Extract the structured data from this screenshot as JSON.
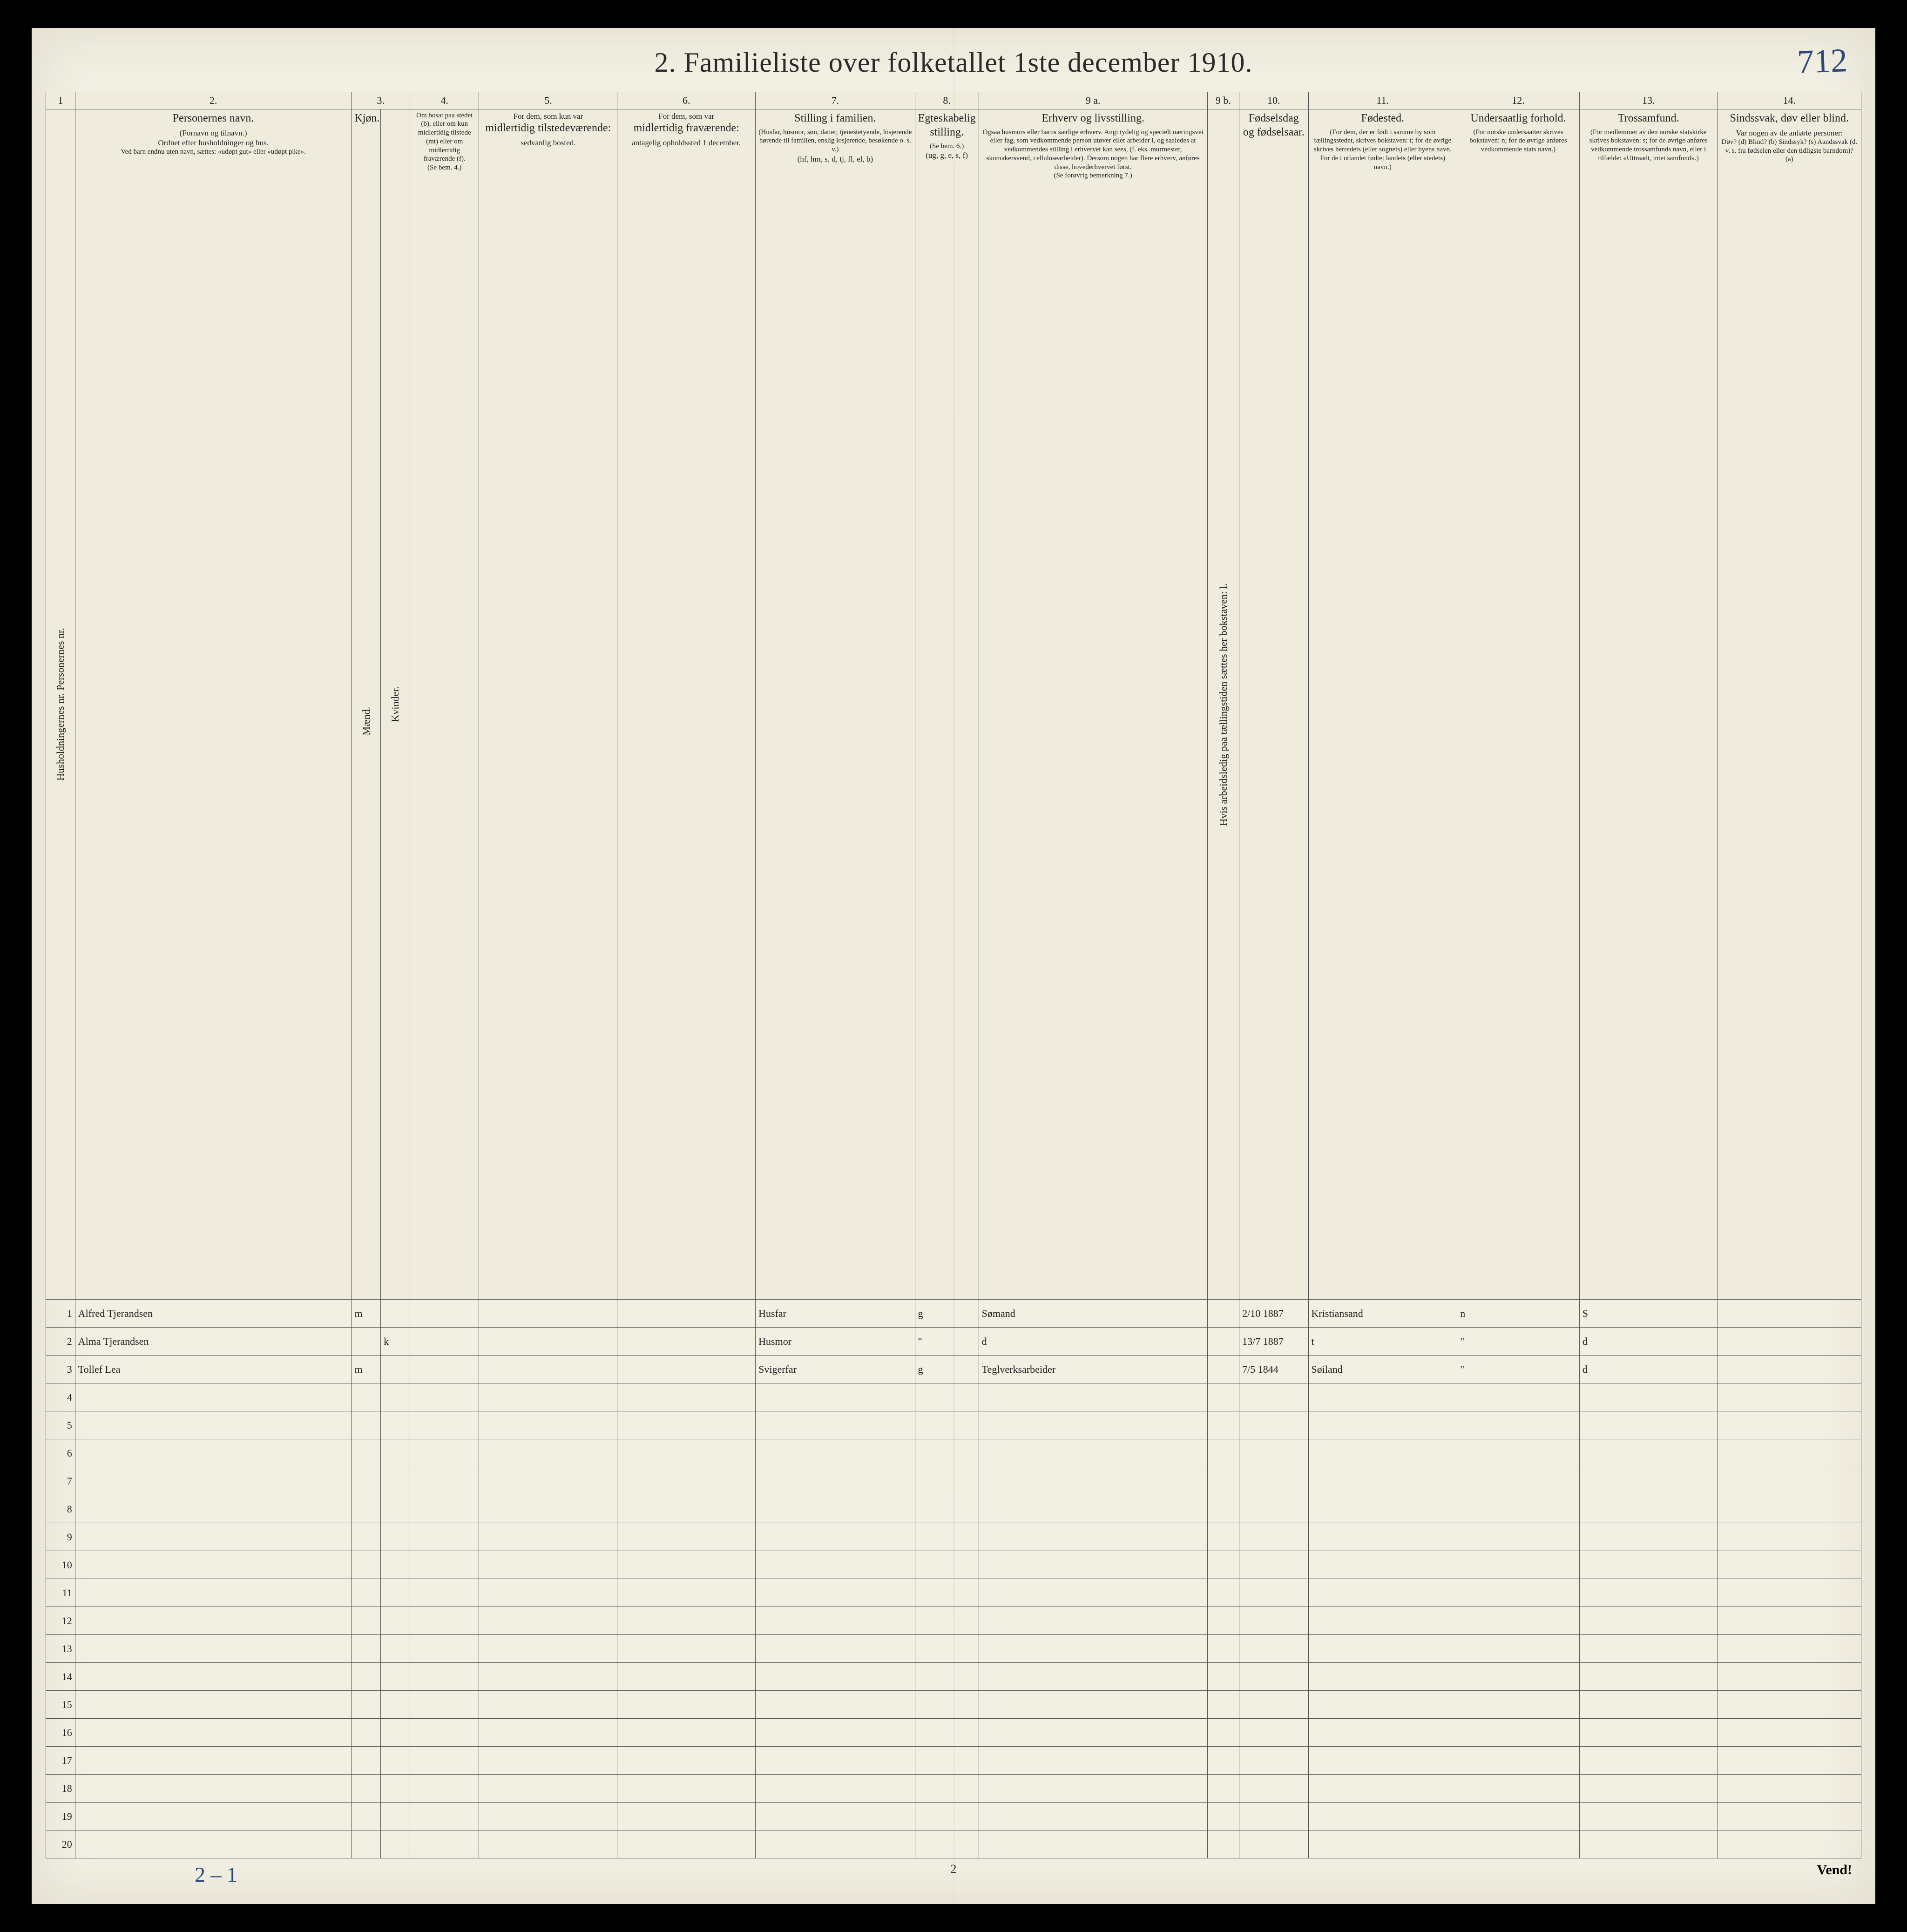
{
  "title": "2.   Familieliste over folketallet 1ste december 1910.",
  "top_right_handwritten": "712",
  "bottom_handwritten": "2 – 1",
  "bottom_page_number": "2",
  "vend": "Vend!",
  "colors": {
    "page_bg": "#f2efe3",
    "border": "#555555",
    "text": "#222222",
    "handwriting": "#303030",
    "handwriting_blue": "#2b4a7a"
  },
  "col_numbers": [
    "1",
    "2.",
    "3.",
    "4.",
    "5.",
    "6.",
    "7.",
    "8.",
    "9 a.",
    "9 b.",
    "10.",
    "11.",
    "12.",
    "13.",
    "14."
  ],
  "headers": {
    "c1": "Husholdningernes nr.   Personernes nr.",
    "c2_title": "Personernes navn.",
    "c2_sub1": "(Fornavn og tilnavn.)",
    "c2_sub2": "Ordnet efter husholdninger og hus.",
    "c2_sub3": "Ved barn endnu uten navn, sættes: «udøpt gut» eller «udøpt pike».",
    "c3_title": "Kjøn.",
    "c3_m": "Mænd.",
    "c3_k": "Kvinder.",
    "c3_bot": "m. | k.",
    "c4_top": "Om bosat paa stedet (b), eller om kun midlertidig tilstede (mt) eller om midlertidig fraværende (f).",
    "c4_bot": "(Se bem. 4.)",
    "c5_top": "For dem, som kun var",
    "c5_mid": "midlertidig tilstedeværende:",
    "c5_bot": "sedvanlig bosted.",
    "c6_top": "For dem, som var",
    "c6_mid": "midlertidig fraværende:",
    "c6_bot": "antagelig opholdssted 1 december.",
    "c7_top": "Stilling i familien.",
    "c7_mid": "(Husfar, husmor, søn, datter, tjenestetyende, losjerende hørende til familien, enslig losjerende, besøkende o. s. v.)",
    "c7_bot": "(hf, hm, s, d, tj, fl, el, b)",
    "c8_top": "Egteskabelig stilling.",
    "c8_mid": "(Se bem. 6.)",
    "c8_bot": "(ug, g, e, s, f)",
    "c9a_top": "Erhverv og livsstilling.",
    "c9a_mid": "Ogsaa husmors eller barns særlige erhverv. Angi tydelig og specielt næringsvei eller fag, som vedkommende person utøver eller arbeider i, og saaledes at vedkommendes stilling i erhvervet kan sees, (f. eks. murmester, skomakersvend, cellulosearbeider). Dersom nogen har flere erhverv, anføres disse, hovederhvervet først.",
    "c9a_bot": "(Se forøvrig bemerkning 7.)",
    "c9b": "Hvis arbeidsledig paa tællingstiden sættes her bokstaven: l.",
    "c10_top": "Fødselsdag og fødselsaar.",
    "c11_top": "Fødested.",
    "c11_mid": "(For dem, der er født i samme by som tællingsstedet, skrives bokstaven: t; for de øvrige skrives herredets (eller sognets) eller byens navn. For de i utlandet fødte: landets (eller stedets) navn.)",
    "c12_top": "Undersaatlig forhold.",
    "c12_mid": "(For norske undersaatter skrives bokstaven: n; for de øvrige anføres vedkommende stats navn.)",
    "c13_top": "Trossamfund.",
    "c13_mid": "(For medlemmer av den norske statskirke skrives bokstaven: s; for de øvrige anføres vedkommende trossamfunds navn, eller i tilfælde: «Uttraadt, intet samfund».)",
    "c14_top": "Sindssvak, døv eller blind.",
    "c14_mid": "Var nogen av de anførte personer:",
    "c14_list": "Døv? (d)  Blind? (b)  Sindssyk? (s)  Aandssvak (d. v. s. fra fødselen eller den tidligste barndom)? (a)"
  },
  "row_numbers": [
    "1",
    "2",
    "3",
    "4",
    "5",
    "6",
    "7",
    "8",
    "9",
    "10",
    "11",
    "12",
    "13",
    "14",
    "15",
    "16",
    "17",
    "18",
    "19",
    "20"
  ],
  "entries": [
    {
      "name": "Alfred Tjerandsen",
      "sex": "m",
      "col7": "Husfar",
      "col8": "g",
      "col9a": "Sømand",
      "col10": "2/10 1887",
      "col11": "Kristiansand",
      "col12": "n",
      "col13": "S"
    },
    {
      "name": "Alma Tjerandsen",
      "sex": "k",
      "col7": "Husmor",
      "col8": "\"",
      "col9a": "d",
      "col10": "13/7 1887",
      "col11": "t",
      "col12": "\"",
      "col13": "d"
    },
    {
      "name": "Tollef Lea",
      "sex": "m",
      "col7": "Svigerfar",
      "col8": "g",
      "col9a": "Teglverksarbeider",
      "col10": "7/5 1844",
      "col11": "Søiland",
      "col12": "\"",
      "col13": "d"
    }
  ]
}
